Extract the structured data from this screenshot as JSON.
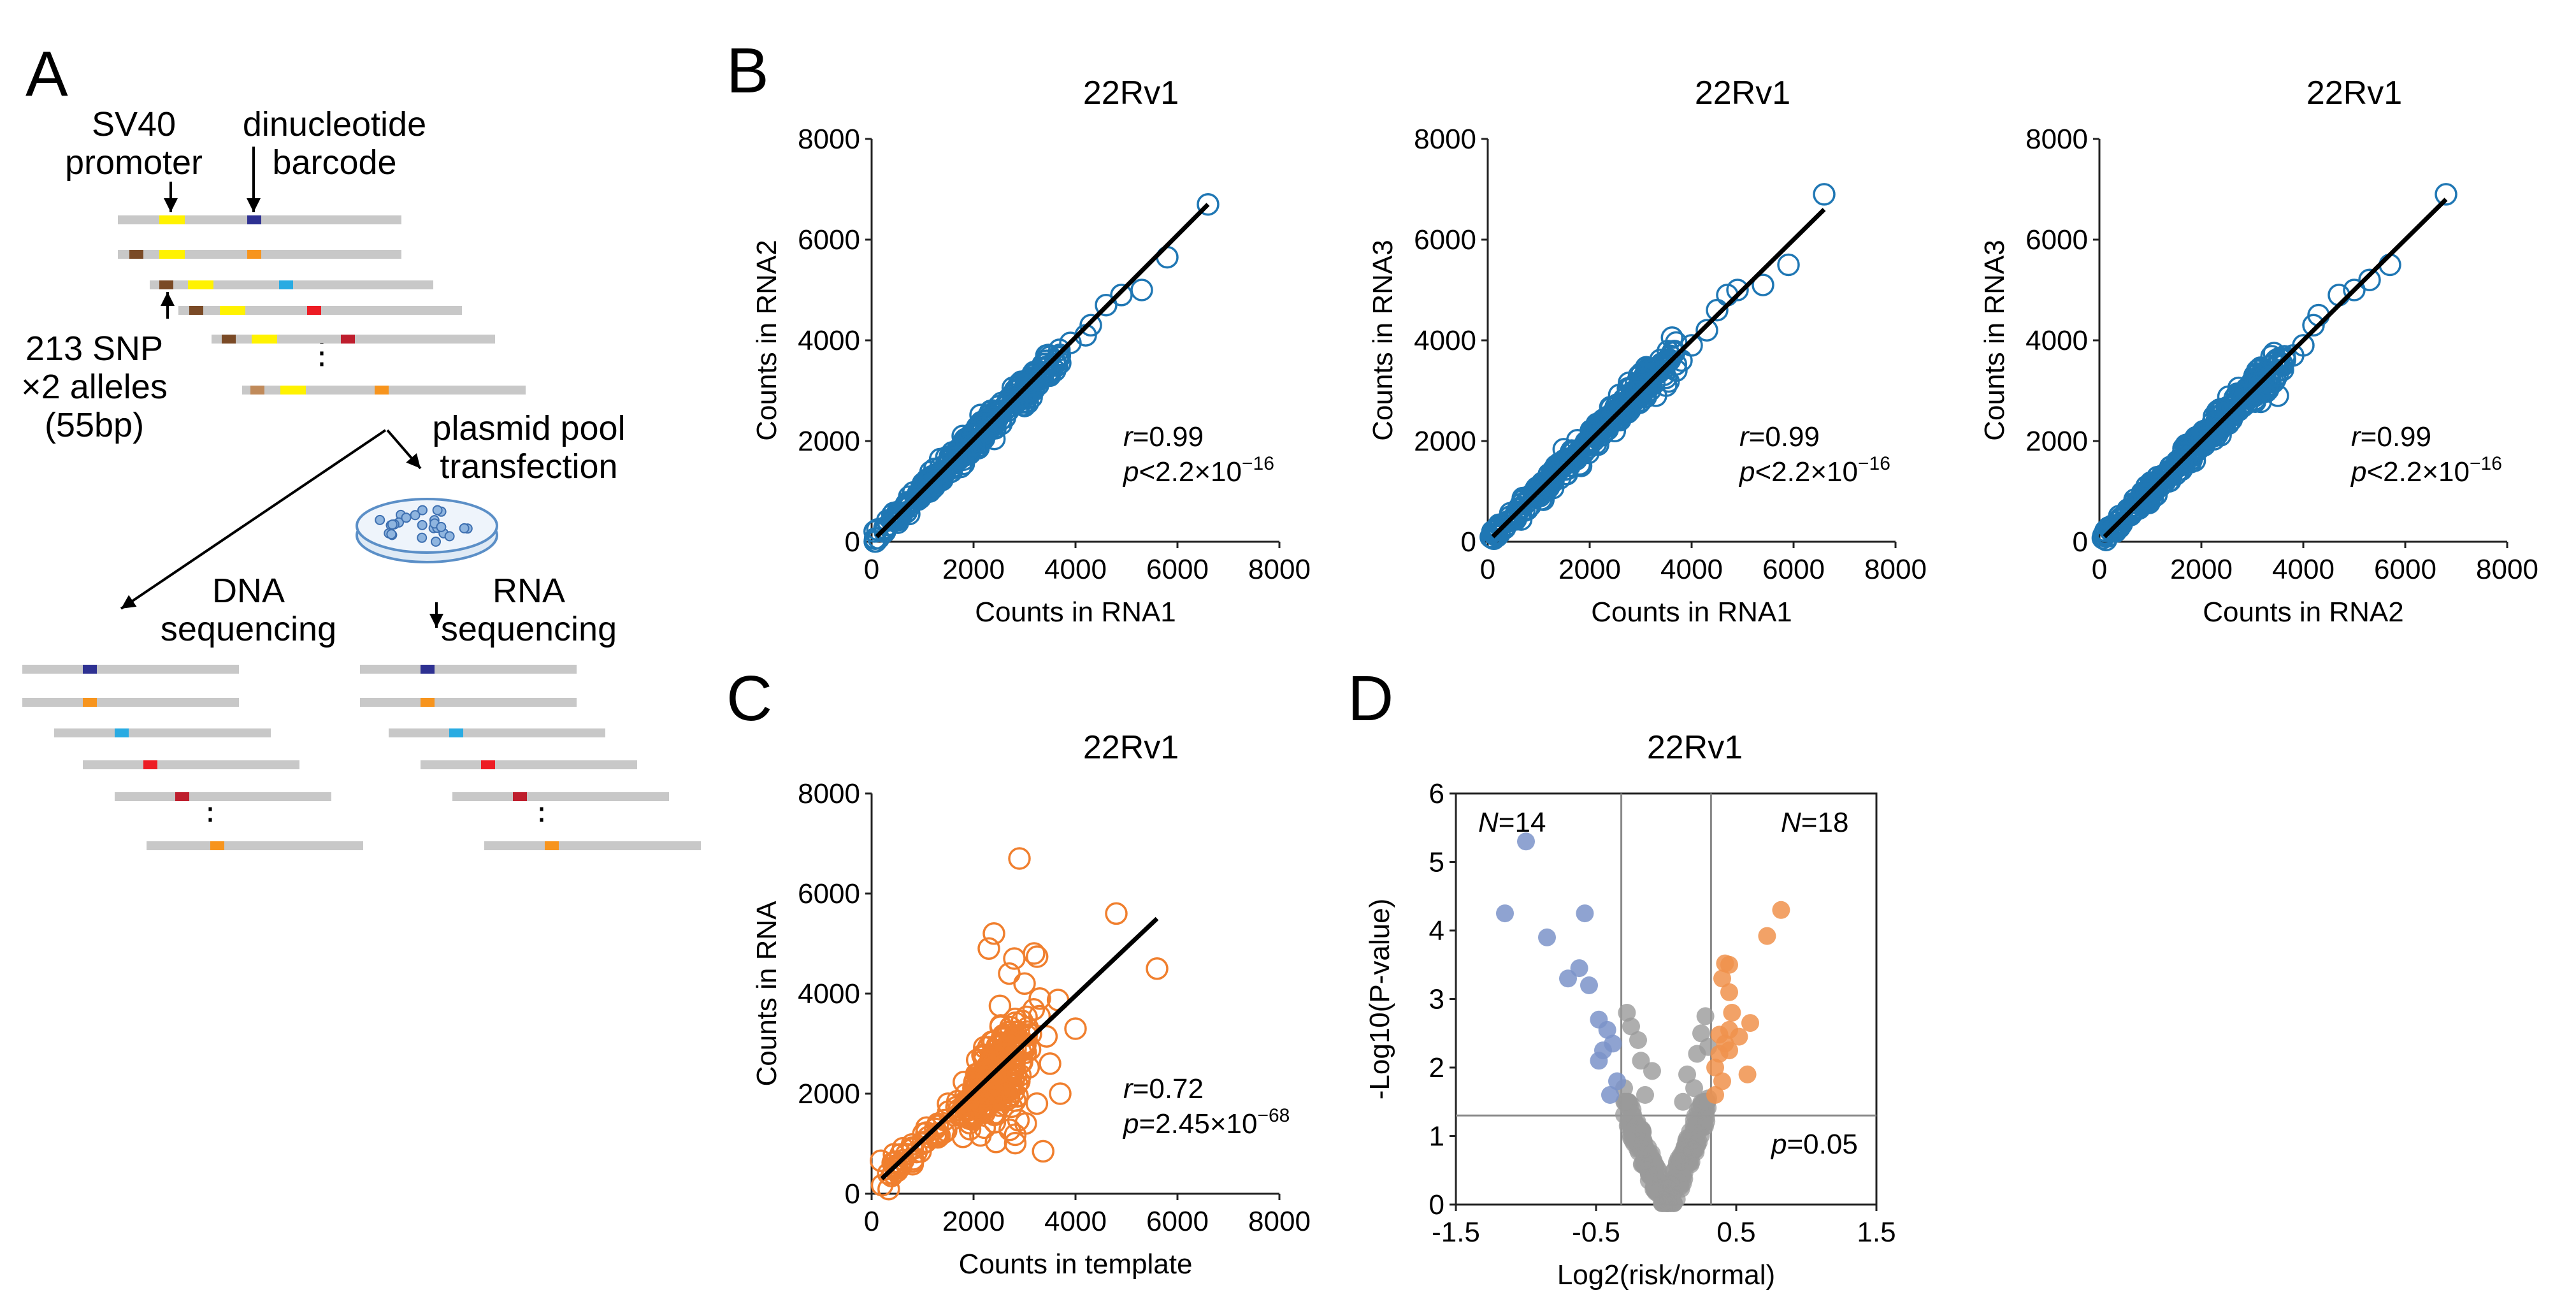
{
  "panel_labels": {
    "a": "A",
    "b": "B",
    "c": "C",
    "d": "D"
  },
  "schematic": {
    "promoter_label": [
      "SV40",
      "promoter"
    ],
    "barcode_label": [
      "dinucleotide",
      "barcode"
    ],
    "snp_label": [
      "213 SNP",
      "×2 alleles",
      "(55bp)"
    ],
    "transfection_label": [
      "plasmid pool",
      "transfection"
    ],
    "dna_label": [
      "DNA",
      "sequencing"
    ],
    "rna_label": [
      "RNA",
      "sequencing"
    ],
    "ellipsis": "⋮",
    "colors": {
      "fragment": "#c8c8c8",
      "promoter": "#fff200",
      "snp": "#7a4a26",
      "barcodes": [
        "#2e3192",
        "#f7941d",
        "#29abe2",
        "#ed1c24",
        "#be1e2d",
        "#f7941d"
      ]
    }
  },
  "chart_data": [
    {
      "id": "b1",
      "type": "scatter",
      "title": "22Rv1",
      "xlabel": "Counts in RNA1",
      "ylabel": "Counts in RNA2",
      "xlim": [
        0,
        8000
      ],
      "ylim": [
        0,
        8000
      ],
      "xticks": [
        0,
        2000,
        4000,
        6000,
        8000
      ],
      "yticks": [
        0,
        2000,
        4000,
        6000,
        8000
      ],
      "color": "#1f77b4",
      "fit": {
        "x0": 100,
        "y0": 100,
        "x1": 6600,
        "y1": 6700
      },
      "ann": {
        "r_label": "r",
        "r_value": "=0.99",
        "p_label": "p",
        "p_value": "<2.2×10",
        "p_exp": "−16"
      },
      "outliers": [
        [
          6600,
          6700
        ],
        [
          5800,
          5650
        ],
        [
          5300,
          5000
        ],
        [
          4900,
          4900
        ],
        [
          4600,
          4700
        ],
        [
          4300,
          4300
        ],
        [
          4200,
          4100
        ],
        [
          3900,
          3950
        ],
        [
          3700,
          3550
        ],
        [
          3600,
          3400
        ],
        [
          3500,
          3300
        ]
      ]
    },
    {
      "id": "b2",
      "type": "scatter",
      "title": "22Rv1",
      "xlabel": "Counts in RNA1",
      "ylabel": "Counts in RNA3",
      "xlim": [
        0,
        8000
      ],
      "ylim": [
        0,
        8000
      ],
      "xticks": [
        0,
        2000,
        4000,
        6000,
        8000
      ],
      "yticks": [
        0,
        2000,
        4000,
        6000,
        8000
      ],
      "color": "#1f77b4",
      "fit": {
        "x0": 100,
        "y0": 100,
        "x1": 6600,
        "y1": 6600
      },
      "ann": {
        "r_label": "r",
        "r_value": "=0.99",
        "p_label": "p",
        "p_value": "<2.2×10",
        "p_exp": "−16"
      },
      "outliers": [
        [
          6600,
          6900
        ],
        [
          5900,
          5500
        ],
        [
          5400,
          5100
        ],
        [
          4900,
          5000
        ],
        [
          4700,
          4900
        ],
        [
          4500,
          4600
        ],
        [
          4300,
          4200
        ],
        [
          4000,
          3900
        ],
        [
          3800,
          3600
        ],
        [
          3700,
          3400
        ],
        [
          3500,
          3100
        ],
        [
          3300,
          2900
        ]
      ]
    },
    {
      "id": "b3",
      "type": "scatter",
      "title": "22Rv1",
      "xlabel": "Counts in RNA2",
      "ylabel": "Counts in RNA3",
      "xlim": [
        0,
        8000
      ],
      "ylim": [
        0,
        8000
      ],
      "xticks": [
        0,
        2000,
        4000,
        6000,
        8000
      ],
      "yticks": [
        0,
        2000,
        4000,
        6000,
        8000
      ],
      "color": "#1f77b4",
      "fit": {
        "x0": 100,
        "y0": 100,
        "x1": 6800,
        "y1": 6800
      },
      "ann": {
        "r_label": "r",
        "r_value": "=0.99",
        "p_label": "p",
        "p_value": "<2.2×10",
        "p_exp": "−16"
      },
      "outliers": [
        [
          6800,
          6900
        ],
        [
          5700,
          5500
        ],
        [
          5300,
          5200
        ],
        [
          5000,
          5000
        ],
        [
          4700,
          4900
        ],
        [
          4300,
          4500
        ],
        [
          4200,
          4300
        ],
        [
          4000,
          3900
        ],
        [
          3800,
          3700
        ],
        [
          3600,
          3500
        ],
        [
          3500,
          2900
        ],
        [
          3300,
          3100
        ]
      ]
    },
    {
      "id": "c",
      "type": "scatter",
      "title": "22Rv1",
      "xlabel": "Counts in template",
      "ylabel": "Counts in RNA",
      "xlim": [
        0,
        8000
      ],
      "ylim": [
        0,
        8000
      ],
      "xticks": [
        0,
        2000,
        4000,
        6000,
        8000
      ],
      "yticks": [
        0,
        2000,
        4000,
        6000,
        8000
      ],
      "color": "#f07f2e",
      "fit": {
        "x0": 200,
        "y0": 300,
        "x1": 5600,
        "y1": 5500
      },
      "ann": {
        "r_label": "r",
        "r_value": "=0.72",
        "p_label": "p",
        "p_value": "=2.45×10",
        "p_exp": "−68"
      },
      "outliers": [
        [
          2900,
          6700
        ],
        [
          4800,
          5600
        ],
        [
          5600,
          4500
        ],
        [
          2400,
          5200
        ],
        [
          2300,
          4900
        ],
        [
          4000,
          3300
        ],
        [
          2800,
          4700
        ],
        [
          3000,
          4200
        ],
        [
          3300,
          3900
        ],
        [
          2700,
          4400
        ],
        [
          1500,
          1800
        ],
        [
          1300,
          1400
        ],
        [
          1000,
          1000
        ],
        [
          3500,
          2600
        ],
        [
          3700,
          2000
        ]
      ]
    },
    {
      "id": "d",
      "type": "scatter",
      "title": "22Rv1",
      "xlabel": "Log2(risk/normal)",
      "ylabel": "-Log10(P-value)",
      "xlim": [
        -1.5,
        1.5
      ],
      "ylim": [
        0,
        6
      ],
      "xticks": [
        -1.5,
        -0.5,
        0.5,
        1.5
      ],
      "yticks": [
        0,
        1,
        2,
        3,
        4,
        5,
        6
      ],
      "vlines": [
        -0.32,
        0.32
      ],
      "hline": 1.3,
      "labels": {
        "left_n_label": "N",
        "left_n_value": "=14",
        "right_n_label": "N",
        "right_n_value": "=18",
        "p_label": "p",
        "p_value": "=0.05"
      },
      "colors": {
        "down": "#7b93c9",
        "up": "#f0924c",
        "ns": "#9a9a9a"
      },
      "points_down": [
        [
          -1.0,
          5.3
        ],
        [
          -1.15,
          4.25
        ],
        [
          -0.58,
          4.25
        ],
        [
          -0.85,
          3.9
        ],
        [
          -0.62,
          3.45
        ],
        [
          -0.7,
          3.3
        ],
        [
          -0.55,
          3.2
        ],
        [
          -0.48,
          2.7
        ],
        [
          -0.42,
          2.55
        ],
        [
          -0.38,
          2.35
        ],
        [
          -0.45,
          2.25
        ],
        [
          -0.48,
          2.1
        ],
        [
          -0.35,
          1.8
        ],
        [
          -0.4,
          1.6
        ]
      ],
      "points_up": [
        [
          0.82,
          4.3
        ],
        [
          0.72,
          3.92
        ],
        [
          0.6,
          2.65
        ],
        [
          0.42,
          3.52
        ],
        [
          0.45,
          3.5
        ],
        [
          0.4,
          3.3
        ],
        [
          0.45,
          3.1
        ],
        [
          0.47,
          2.8
        ],
        [
          0.45,
          2.55
        ],
        [
          0.52,
          2.45
        ],
        [
          0.42,
          2.35
        ],
        [
          0.38,
          2.2
        ],
        [
          0.35,
          2.0
        ],
        [
          0.4,
          1.8
        ],
        [
          0.35,
          1.6
        ],
        [
          0.58,
          1.9
        ],
        [
          0.45,
          2.25
        ],
        [
          0.38,
          2.48
        ]
      ],
      "points_ns": [
        [
          -0.28,
          2.8
        ],
        [
          -0.25,
          2.6
        ],
        [
          -0.2,
          2.4
        ],
        [
          -0.18,
          2.1
        ],
        [
          -0.1,
          1.95
        ],
        [
          -0.3,
          1.7
        ],
        [
          0.28,
          2.75
        ],
        [
          0.25,
          2.5
        ],
        [
          0.3,
          2.3
        ],
        [
          0.22,
          2.2
        ],
        [
          0.15,
          1.9
        ],
        [
          0.2,
          1.7
        ],
        [
          0.3,
          1.55
        ],
        [
          0.12,
          1.5
        ],
        [
          -0.15,
          1.6
        ]
      ]
    }
  ]
}
